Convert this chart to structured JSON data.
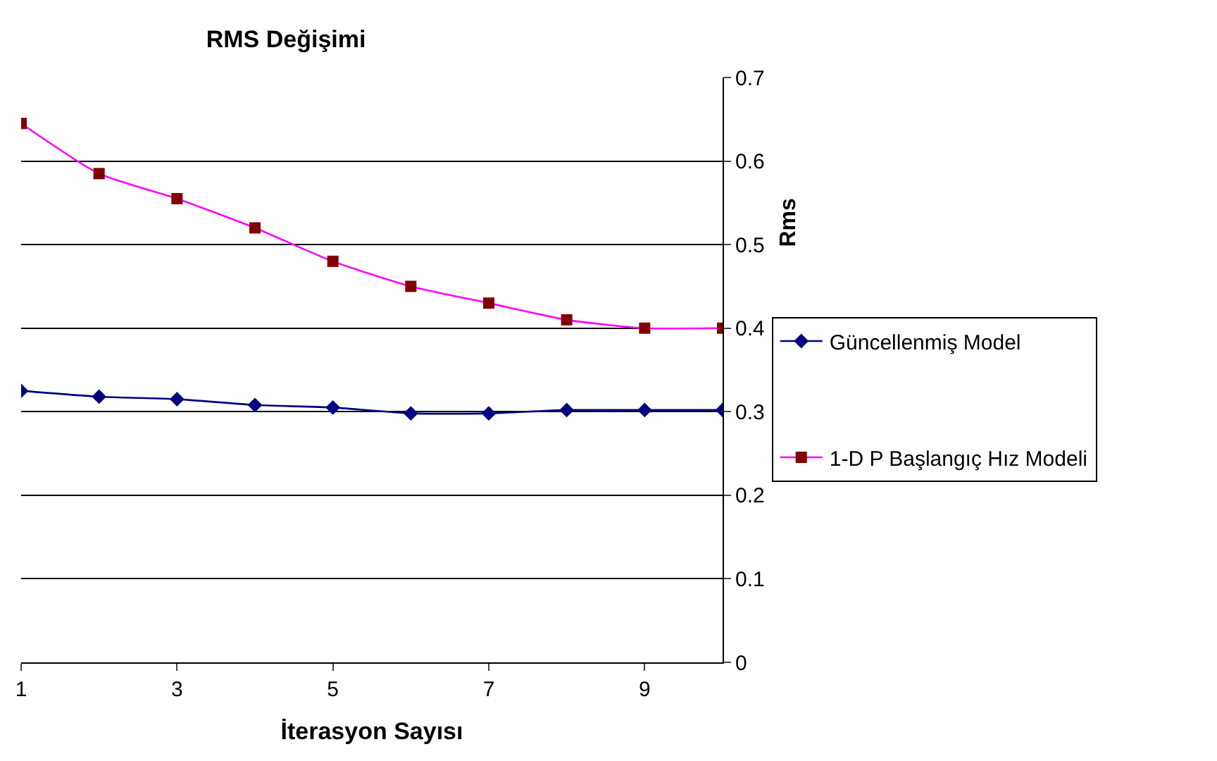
{
  "chart_data": {
    "type": "line",
    "title": "RMS Değişimi",
    "xlabel": "İterasyon Sayısı",
    "ylabel": "Rms",
    "x": [
      1,
      2,
      3,
      4,
      5,
      6,
      7,
      8,
      9,
      10
    ],
    "series": [
      {
        "name": "Güncellenmiş Model",
        "color": "#000080",
        "marker": "diamond",
        "values": [
          0.325,
          0.318,
          0.315,
          0.308,
          0.305,
          0.298,
          0.298,
          0.302,
          0.302,
          0.302
        ]
      },
      {
        "name": "1-D P Başlangıç Hız Modeli",
        "color": "#800000",
        "marker": "square",
        "values": [
          0.645,
          0.585,
          0.555,
          0.52,
          0.48,
          0.45,
          0.43,
          0.41,
          0.4,
          0.4
        ]
      }
    ],
    "xlim": [
      1,
      10
    ],
    "xticks": [
      1,
      3,
      5,
      7,
      9
    ],
    "ylim": [
      0,
      0.7
    ],
    "yticks": [
      0,
      0.1,
      0.2,
      0.3,
      0.4,
      0.5,
      0.6,
      0.7
    ],
    "grid": "y",
    "legend": "right",
    "line_style": "solid"
  }
}
